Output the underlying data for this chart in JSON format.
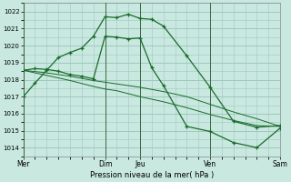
{
  "xlabel": "Pression niveau de la mer( hPa )",
  "bg_color": "#c8e8e0",
  "plot_bg_color": "#c8e8e0",
  "grid_color": "#a0c8c0",
  "line_color": "#1a6b2a",
  "ylim": [
    1013.5,
    1022.5
  ],
  "yticks": [
    1014,
    1015,
    1016,
    1017,
    1018,
    1019,
    1020,
    1021,
    1022
  ],
  "xlim": [
    0,
    11
  ],
  "vline_positions": [
    0,
    3.5,
    5,
    8,
    11
  ],
  "xtick_positions": [
    0,
    3.5,
    5,
    8,
    11
  ],
  "xtick_labels": [
    "Mer",
    "Dim",
    "Jeu",
    "Ven",
    "Sam"
  ],
  "line1_x": [
    0,
    0.5,
    1,
    1.5,
    2,
    2.5,
    3,
    3.5,
    4,
    4.5,
    5,
    5.5,
    6,
    7,
    8,
    9,
    10,
    11
  ],
  "line1_y": [
    1017.0,
    1017.8,
    1018.55,
    1019.3,
    1019.6,
    1019.85,
    1020.55,
    1021.7,
    1021.65,
    1021.85,
    1021.6,
    1021.55,
    1021.15,
    1019.4,
    1017.55,
    1015.55,
    1015.2,
    1015.3
  ],
  "line2_x": [
    0,
    0.5,
    1,
    1.5,
    2,
    2.5,
    3,
    3.5,
    4,
    4.5,
    5,
    5.5,
    6,
    7,
    8,
    9,
    10,
    11
  ],
  "line2_y": [
    1018.55,
    1018.65,
    1018.6,
    1018.5,
    1018.3,
    1018.2,
    1018.05,
    1020.55,
    1020.5,
    1020.4,
    1020.45,
    1018.7,
    1017.65,
    1015.25,
    1014.95,
    1014.3,
    1014.0,
    1015.15
  ],
  "line3_x": [
    0,
    1,
    2,
    3,
    3.5,
    4,
    5,
    6,
    7,
    8,
    9,
    10,
    11
  ],
  "line3_y": [
    1018.55,
    1018.4,
    1018.2,
    1017.95,
    1017.85,
    1017.75,
    1017.55,
    1017.3,
    1017.0,
    1016.55,
    1016.1,
    1015.7,
    1015.25
  ],
  "line4_x": [
    0,
    1,
    2,
    3,
    3.5,
    4,
    5,
    6,
    7,
    8,
    9,
    10,
    11
  ],
  "line4_y": [
    1018.55,
    1018.25,
    1017.95,
    1017.6,
    1017.45,
    1017.35,
    1017.0,
    1016.7,
    1016.35,
    1015.95,
    1015.6,
    1015.3,
    1015.25
  ]
}
